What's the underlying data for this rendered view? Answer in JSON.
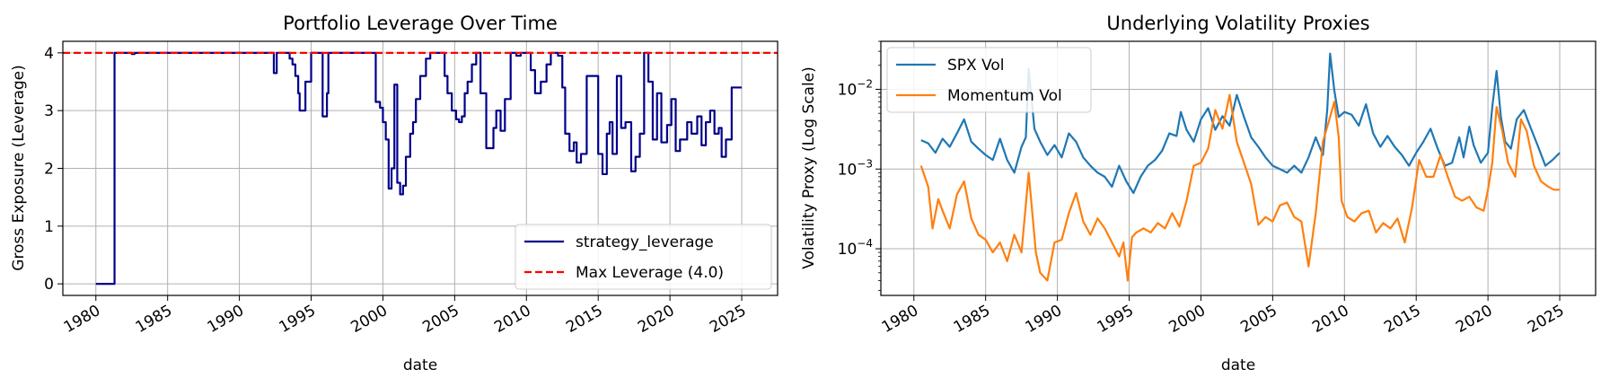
{
  "chart_data": [
    {
      "type": "line",
      "title": "Portfolio Leverage Over Time",
      "xlabel": "date",
      "ylabel": "Gross Exposure (Leverage)",
      "xlim": [
        1977.7,
        2027.5
      ],
      "ylim": [
        -0.2,
        4.2
      ],
      "xticks": [
        1980,
        1985,
        1990,
        1995,
        2000,
        2005,
        2010,
        2015,
        2020,
        2025
      ],
      "yticks": [
        0,
        1,
        2,
        3,
        4
      ],
      "grid": true,
      "legend_position": "lower-right",
      "series": [
        {
          "name": "strategy_leverage",
          "color": "#00008b",
          "style": "step",
          "x": [
            1980.0,
            1981.2,
            1981.3,
            1982.5,
            1982.7,
            1992.3,
            1992.4,
            1992.6,
            1992.8,
            1993.3,
            1993.5,
            1993.7,
            1993.9,
            1994.1,
            1994.2,
            1994.6,
            1995.0,
            1995.7,
            1995.8,
            1996.1,
            1996.2,
            1999.3,
            1999.5,
            1999.8,
            2000.0,
            2000.2,
            2000.4,
            2000.6,
            2000.8,
            2001.0,
            2001.2,
            2001.4,
            2001.6,
            2001.9,
            2002.1,
            2002.3,
            2002.6,
            2003.0,
            2003.3,
            2004.3,
            2004.5,
            2004.8,
            2005.1,
            2005.3,
            2005.5,
            2005.7,
            2005.9,
            2006.2,
            2006.5,
            2006.8,
            2007.2,
            2007.7,
            2007.9,
            2008.2,
            2008.5,
            2008.9,
            2009.3,
            2009.6,
            2010.3,
            2010.6,
            2011.0,
            2011.4,
            2011.7,
            2012.2,
            2012.5,
            2012.7,
            2013.0,
            2013.3,
            2013.5,
            2013.8,
            2014.2,
            2015.0,
            2015.3,
            2015.6,
            2015.8,
            2016.0,
            2016.3,
            2016.6,
            2016.9,
            2017.3,
            2017.6,
            2017.9,
            2018.2,
            2018.5,
            2018.8,
            2019.1,
            2019.4,
            2019.8,
            2020.1,
            2020.4,
            2020.7,
            2021.2,
            2021.5,
            2021.9,
            2022.2,
            2022.5,
            2022.8,
            2023.1,
            2023.4,
            2023.6,
            2023.9,
            2024.3,
            2024.6,
            2024.9,
            2025.0
          ],
          "values": [
            0,
            0,
            4,
            3.98,
            4,
            4,
            3.65,
            4,
            4,
            4,
            3.9,
            3.8,
            3.6,
            3.3,
            3,
            3.5,
            4,
            4,
            2.9,
            3.3,
            4,
            4,
            3.15,
            3.05,
            2.8,
            2.5,
            1.65,
            2.0,
            3.45,
            1.75,
            1.55,
            1.7,
            2.2,
            2.6,
            2.8,
            3.2,
            3.6,
            3.9,
            4,
            3.6,
            3.3,
            3.0,
            2.85,
            2.8,
            2.9,
            3.3,
            3.5,
            3.8,
            4,
            3.3,
            2.35,
            2.7,
            3.0,
            2.65,
            3.2,
            4,
            3.95,
            4,
            3.7,
            3.3,
            3.5,
            3.8,
            4,
            3.95,
            3.4,
            2.6,
            2.3,
            2.45,
            2.1,
            2.25,
            3.6,
            2.25,
            1.9,
            2.6,
            2.8,
            2.25,
            3.6,
            2.7,
            2.8,
            1.95,
            2.2,
            2.6,
            4,
            3.5,
            2.5,
            3.3,
            2.45,
            2.75,
            3.2,
            2.3,
            2.5,
            2.8,
            2.6,
            2.9,
            2.4,
            2.8,
            3.0,
            2.6,
            2.7,
            2.2,
            2.5,
            3.4,
            3.4,
            3.4,
            3.4
          ]
        },
        {
          "name": "Max Leverage (4.0)",
          "color": "#ff0000",
          "style": "dashed",
          "x": [
            1977.7,
            2027.5
          ],
          "values": [
            4.0,
            4.0
          ]
        }
      ]
    },
    {
      "type": "line",
      "title": "Underlying Volatility Proxies",
      "xlabel": "date",
      "ylabel": "Volatility Proxy (Log Scale)",
      "yscale": "log",
      "xlim": [
        1977.7,
        2027.5
      ],
      "ylim": [
        2.6e-05,
        0.04
      ],
      "xticks": [
        1980,
        1985,
        1990,
        1995,
        2000,
        2005,
        2010,
        2015,
        2020,
        2025
      ],
      "yticks": [
        0.0001,
        0.001,
        0.01
      ],
      "ytick_labels": [
        "10",
        "10",
        "10"
      ],
      "ytick_exponents": [
        "−4",
        "−3",
        "−2"
      ],
      "grid": true,
      "legend_position": "upper-left",
      "series": [
        {
          "name": "SPX Vol",
          "color": "#1f77b4",
          "x": [
            1980.5,
            1981.0,
            1981.5,
            1982.0,
            1982.5,
            1983.0,
            1983.5,
            1984.0,
            1984.5,
            1985.0,
            1985.5,
            1986.0,
            1986.5,
            1987.0,
            1987.5,
            1987.8,
            1988.0,
            1988.4,
            1988.8,
            1989.3,
            1989.8,
            1990.3,
            1990.8,
            1991.3,
            1991.8,
            1992.3,
            1992.8,
            1993.3,
            1993.8,
            1994.3,
            1994.8,
            1995.3,
            1995.8,
            1996.3,
            1996.8,
            1997.3,
            1997.8,
            1998.3,
            1998.6,
            1999.0,
            1999.5,
            2000.0,
            2000.5,
            2001.0,
            2001.5,
            2002.0,
            2002.5,
            2003.0,
            2003.5,
            2004.0,
            2004.5,
            2005.0,
            2005.5,
            2006.0,
            2006.5,
            2007.0,
            2007.5,
            2008.0,
            2008.5,
            2008.8,
            2009.0,
            2009.3,
            2009.6,
            2010.0,
            2010.5,
            2011.0,
            2011.5,
            2012.0,
            2012.5,
            2013.0,
            2013.5,
            2014.0,
            2014.5,
            2015.0,
            2015.5,
            2016.0,
            2016.5,
            2017.0,
            2017.5,
            2018.0,
            2018.3,
            2018.7,
            2019.0,
            2019.5,
            2020.0,
            2020.3,
            2020.6,
            2020.9,
            2021.2,
            2021.6,
            2022.0,
            2022.5,
            2023.0,
            2023.5,
            2024.0,
            2024.5,
            2025.0
          ],
          "values": [
            0.0023,
            0.0021,
            0.0016,
            0.0024,
            0.0019,
            0.0028,
            0.0042,
            0.0022,
            0.0018,
            0.0015,
            0.0013,
            0.0024,
            0.0013,
            0.0009,
            0.0019,
            0.0025,
            0.018,
            0.0032,
            0.0022,
            0.0015,
            0.002,
            0.0014,
            0.0028,
            0.0022,
            0.0014,
            0.0011,
            0.0009,
            0.0008,
            0.0006,
            0.0011,
            0.0007,
            0.0005,
            0.0008,
            0.0011,
            0.0013,
            0.0017,
            0.0028,
            0.0026,
            0.0052,
            0.0031,
            0.0022,
            0.0042,
            0.0058,
            0.0031,
            0.0046,
            0.0035,
            0.0085,
            0.0045,
            0.0025,
            0.0019,
            0.0014,
            0.0011,
            0.001,
            0.0009,
            0.0011,
            0.0009,
            0.0014,
            0.0025,
            0.0015,
            0.0055,
            0.028,
            0.0095,
            0.0045,
            0.0052,
            0.0048,
            0.0035,
            0.0065,
            0.0028,
            0.0019,
            0.0026,
            0.0019,
            0.0015,
            0.0011,
            0.0016,
            0.0022,
            0.0032,
            0.0018,
            0.0011,
            0.0012,
            0.0025,
            0.0014,
            0.0034,
            0.002,
            0.0012,
            0.0016,
            0.006,
            0.017,
            0.0045,
            0.0022,
            0.0018,
            0.0042,
            0.0055,
            0.0032,
            0.0019,
            0.0011,
            0.0013,
            0.0016
          ]
        },
        {
          "name": "Momentum Vol",
          "color": "#ff7f0e",
          "x": [
            1980.5,
            1981.0,
            1981.3,
            1981.7,
            1982.0,
            1982.5,
            1983.0,
            1983.5,
            1984.0,
            1984.5,
            1985.0,
            1985.5,
            1986.0,
            1986.5,
            1987.0,
            1987.5,
            1988.0,
            1988.5,
            1988.8,
            1989.3,
            1989.8,
            1990.3,
            1990.8,
            1991.3,
            1991.8,
            1992.3,
            1992.8,
            1993.3,
            1993.8,
            1994.3,
            1994.6,
            1994.9,
            1995.2,
            1995.5,
            1996.0,
            1996.5,
            1997.0,
            1997.5,
            1998.0,
            1998.5,
            1999.0,
            1999.5,
            2000.0,
            2000.5,
            2001.0,
            2001.5,
            2002.0,
            2002.5,
            2003.0,
            2003.5,
            2004.0,
            2004.5,
            2005.0,
            2005.5,
            2006.0,
            2006.5,
            2007.0,
            2007.5,
            2008.0,
            2008.5,
            2009.0,
            2009.3,
            2009.6,
            2009.8,
            2010.2,
            2010.7,
            2011.2,
            2011.7,
            2012.2,
            2012.7,
            2013.2,
            2013.7,
            2014.2,
            2014.7,
            2015.2,
            2015.7,
            2016.2,
            2016.7,
            2017.2,
            2017.7,
            2018.2,
            2018.7,
            2019.2,
            2019.7,
            2020.0,
            2020.3,
            2020.6,
            2021.0,
            2021.4,
            2021.9,
            2022.3,
            2022.7,
            2023.2,
            2023.7,
            2024.2,
            2024.6,
            2025.0
          ],
          "values": [
            0.0011,
            0.0006,
            0.00018,
            0.00042,
            0.0003,
            0.00018,
            0.00048,
            0.0007,
            0.00024,
            0.00015,
            0.00013,
            9e-05,
            0.00012,
            7e-05,
            0.00015,
            9e-05,
            0.0009,
            9e-05,
            5e-05,
            4e-05,
            0.00012,
            0.00013,
            0.00028,
            0.0005,
            0.00022,
            0.00015,
            0.00024,
            0.00018,
            0.00012,
            8e-05,
            0.00012,
            4e-05,
            0.00014,
            0.00016,
            0.00018,
            0.00016,
            0.00021,
            0.00018,
            0.00028,
            0.00019,
            0.0004,
            0.0011,
            0.0012,
            0.0018,
            0.0055,
            0.0032,
            0.0085,
            0.0022,
            0.0012,
            0.00065,
            0.0002,
            0.00025,
            0.00022,
            0.00035,
            0.00038,
            0.00025,
            0.00022,
            6e-05,
            0.00028,
            0.0022,
            0.0045,
            0.007,
            0.0025,
            0.0004,
            0.00025,
            0.00022,
            0.00028,
            0.0003,
            0.00016,
            0.00021,
            0.00018,
            0.00024,
            0.00012,
            0.00032,
            0.0013,
            0.0008,
            0.0008,
            0.0015,
            0.0008,
            0.00045,
            0.0004,
            0.00045,
            0.00033,
            0.0003,
            0.00055,
            0.0012,
            0.006,
            0.003,
            0.0012,
            0.0008,
            0.0042,
            0.003,
            0.0011,
            0.0007,
            0.0006,
            0.00055,
            0.00055
          ]
        }
      ]
    }
  ]
}
